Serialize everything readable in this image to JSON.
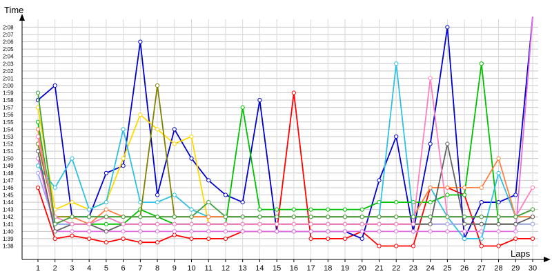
{
  "chart_data": {
    "type": "line",
    "ylabel": "Time",
    "xlabel": "Laps",
    "x": [
      1,
      2,
      3,
      4,
      5,
      6,
      7,
      8,
      9,
      10,
      11,
      12,
      13,
      14,
      15,
      16,
      17,
      18,
      19,
      20,
      21,
      22,
      23,
      24,
      25,
      26,
      27,
      28,
      29,
      30
    ],
    "y_ticks": [
      "1:38",
      "1:39",
      "1:40",
      "1:41",
      "1:42",
      "1:43",
      "1:44",
      "1:45",
      "1:46",
      "1:47",
      "1:48",
      "1:49",
      "1:50",
      "1:51",
      "1:52",
      "1:53",
      "1:54",
      "1:55",
      "1:56",
      "1:57",
      "1:58",
      "1:59",
      "2:00",
      "2:01",
      "2:02",
      "2:03",
      "2:04",
      "2:05",
      "2:06",
      "2:07",
      "2:08"
    ],
    "ylim_seconds": [
      97,
      135
    ],
    "grid": true,
    "legend": "none",
    "series": [
      {
        "color": "#ff0000",
        "values": [
          106,
          99,
          99.4,
          99,
          98.5,
          99,
          98.5,
          98.5,
          99.5,
          99,
          99,
          99,
          100,
          100,
          100,
          119,
          99,
          99,
          99,
          100,
          98,
          98,
          98,
          106,
          106,
          105,
          98,
          98,
          99,
          99
        ]
      },
      {
        "color": "#0000c8",
        "values": [
          118,
          120,
          102,
          102,
          108,
          109,
          126,
          105,
          114,
          110,
          107,
          105,
          104,
          118,
          100,
          100,
          100,
          100,
          100,
          99,
          107,
          113,
          100,
          112,
          128,
          99,
          104,
          104,
          105,
          135
        ]
      },
      {
        "color": "#00c000",
        "values": [
          115,
          101,
          101,
          101,
          101,
          101,
          103,
          102,
          101,
          101,
          101,
          101,
          117,
          103,
          103,
          103,
          103,
          103,
          103,
          103,
          104,
          104,
          104,
          104,
          105,
          105,
          123,
          101,
          101,
          101
        ]
      },
      {
        "color": "#ffd800",
        "values": [
          117,
          103,
          104,
          103,
          104,
          110,
          116,
          114,
          112,
          113,
          101,
          101,
          101,
          101,
          101,
          101,
          101,
          101,
          101,
          101,
          101,
          101,
          101,
          101,
          101,
          101,
          101,
          101,
          101,
          101
        ]
      },
      {
        "color": "#e070e0",
        "values": [
          110,
          100,
          100,
          100,
          100,
          100,
          100,
          100,
          100,
          100,
          100,
          100,
          100,
          100,
          100,
          100,
          100,
          100,
          100,
          100,
          100,
          100,
          100,
          100,
          100,
          100,
          100,
          100,
          100,
          133
        ]
      },
      {
        "color": "#30c0e0",
        "values": [
          109,
          106,
          110,
          103,
          104,
          114,
          104,
          104,
          105,
          103,
          102,
          102,
          102,
          102,
          102,
          102,
          102,
          102,
          102,
          102,
          102,
          123,
          102,
          106,
          102,
          99,
          99,
          108,
          102,
          102
        ]
      },
      {
        "color": "#808000",
        "values": [
          112,
          102,
          102,
          102,
          102,
          102,
          102,
          120,
          102,
          102,
          102,
          102,
          102,
          102,
          102,
          102,
          102,
          102,
          102,
          102,
          102,
          102,
          102,
          102,
          102,
          102,
          102,
          102,
          102,
          103
        ]
      },
      {
        "color": "#ff8040",
        "values": [
          114,
          101,
          102,
          101,
          103,
          102,
          102,
          102,
          102,
          102,
          102,
          102,
          102,
          102,
          102,
          102,
          102,
          102,
          102,
          102,
          102,
          102,
          102,
          106,
          106,
          106,
          106,
          110,
          102,
          102
        ]
      },
      {
        "color": "#a0a0ff",
        "values": [
          108,
          101,
          101,
          101,
          102,
          101,
          101,
          101,
          101,
          101,
          101,
          101,
          101,
          101,
          101,
          101,
          101,
          101,
          101,
          101,
          101,
          101,
          101,
          101,
          101,
          101,
          101,
          101,
          101,
          101
        ]
      },
      {
        "color": "#606060",
        "values": [
          111,
          100,
          101,
          101,
          100,
          101,
          101,
          101,
          101,
          101,
          101,
          101,
          101,
          101,
          101,
          101,
          101,
          101,
          101,
          101,
          101,
          101,
          101,
          101,
          112,
          101,
          101,
          101,
          101,
          102
        ]
      },
      {
        "color": "#ff80c0",
        "values": [
          113,
          102,
          101,
          101,
          102,
          101,
          101,
          101,
          101,
          101,
          101,
          101,
          101,
          101,
          101,
          101,
          101,
          101,
          101,
          101,
          101,
          101,
          101,
          121,
          102,
          102,
          102,
          102,
          102,
          106
        ]
      },
      {
        "color": "#40a040",
        "values": [
          119,
          101,
          102,
          102,
          102,
          102,
          102,
          102,
          102,
          102,
          104,
          102,
          102,
          102,
          102,
          102,
          102,
          102,
          102,
          102,
          102,
          102,
          102,
          102,
          102,
          102,
          102,
          102,
          102,
          103
        ]
      }
    ]
  }
}
